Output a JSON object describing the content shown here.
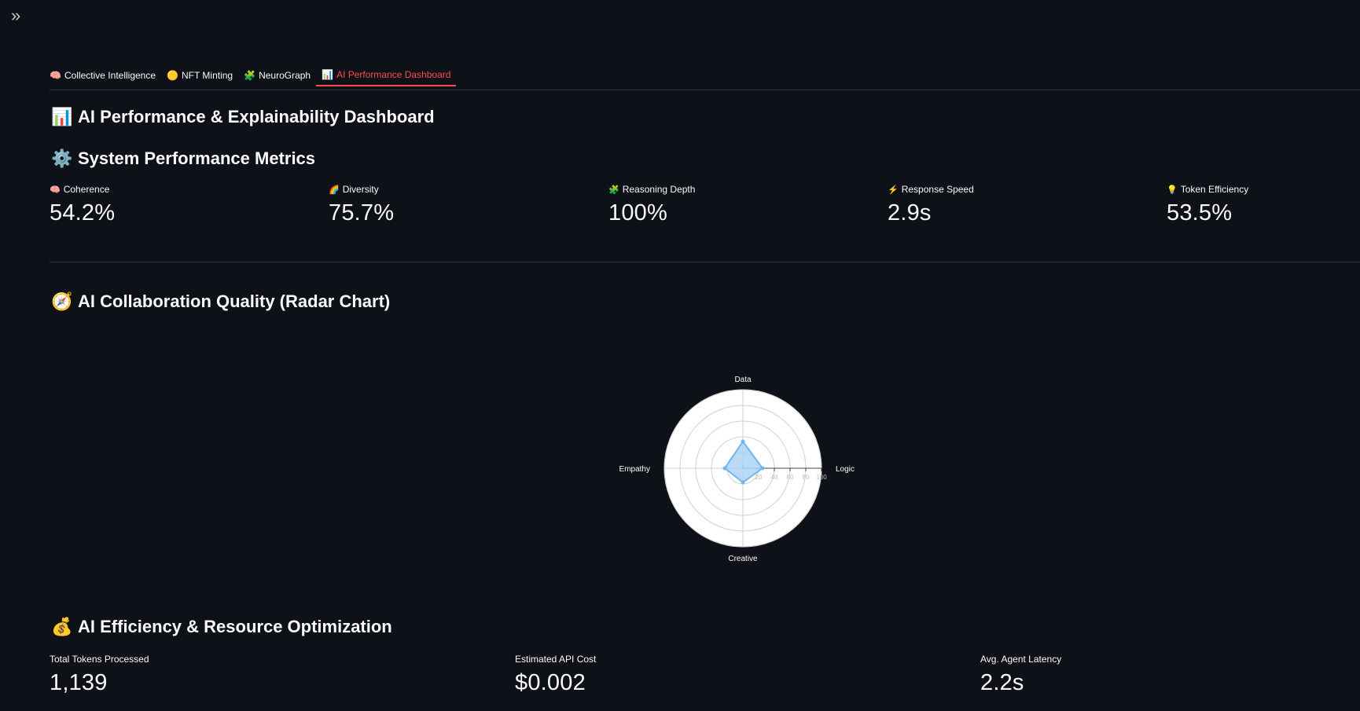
{
  "tabs": [
    {
      "icon": "🧠",
      "label": "Collective Intelligence"
    },
    {
      "icon": "🟡",
      "label": "NFT Minting"
    },
    {
      "icon": "🧩",
      "label": "NeuroGraph"
    },
    {
      "icon": "📊",
      "label": "AI Performance Dashboard"
    }
  ],
  "page_title": {
    "icon": "📊",
    "text": "AI Performance & Explainability Dashboard"
  },
  "system_metrics": {
    "title_icon": "⚙️",
    "title": "System Performance Metrics",
    "items": [
      {
        "icon": "🧠",
        "label": "Coherence",
        "value": "54.2%"
      },
      {
        "icon": "🌈",
        "label": "Diversity",
        "value": "75.7%"
      },
      {
        "icon": "🧩",
        "label": "Reasoning Depth",
        "value": "100%"
      },
      {
        "icon": "⚡",
        "label": "Response Speed",
        "value": "2.9s"
      },
      {
        "icon": "💡",
        "label": "Token Efficiency",
        "value": "53.5%"
      }
    ]
  },
  "radar_section": {
    "title_icon": "🧭",
    "title": "AI Collaboration Quality (Radar Chart)"
  },
  "chart_data": {
    "type": "radar",
    "axes": [
      "Data",
      "Logic",
      "Creative",
      "Empathy"
    ],
    "values": [
      34,
      25,
      18,
      23
    ],
    "radial_range": [
      0,
      100
    ],
    "radial_ticks": [
      "20",
      "40",
      "60",
      "80",
      "100"
    ],
    "fill_color": "#aad4f5",
    "line_color": "#6fb5ee",
    "background": "#ffffff"
  },
  "efficiency": {
    "title_icon": "💰",
    "title": "AI Efficiency & Resource Optimization",
    "items": [
      {
        "label": "Total Tokens Processed",
        "value": "1,139"
      },
      {
        "label": "Estimated API Cost",
        "value": "$0.002"
      },
      {
        "label": "Avg. Agent Latency",
        "value": "2.2s"
      }
    ]
  }
}
